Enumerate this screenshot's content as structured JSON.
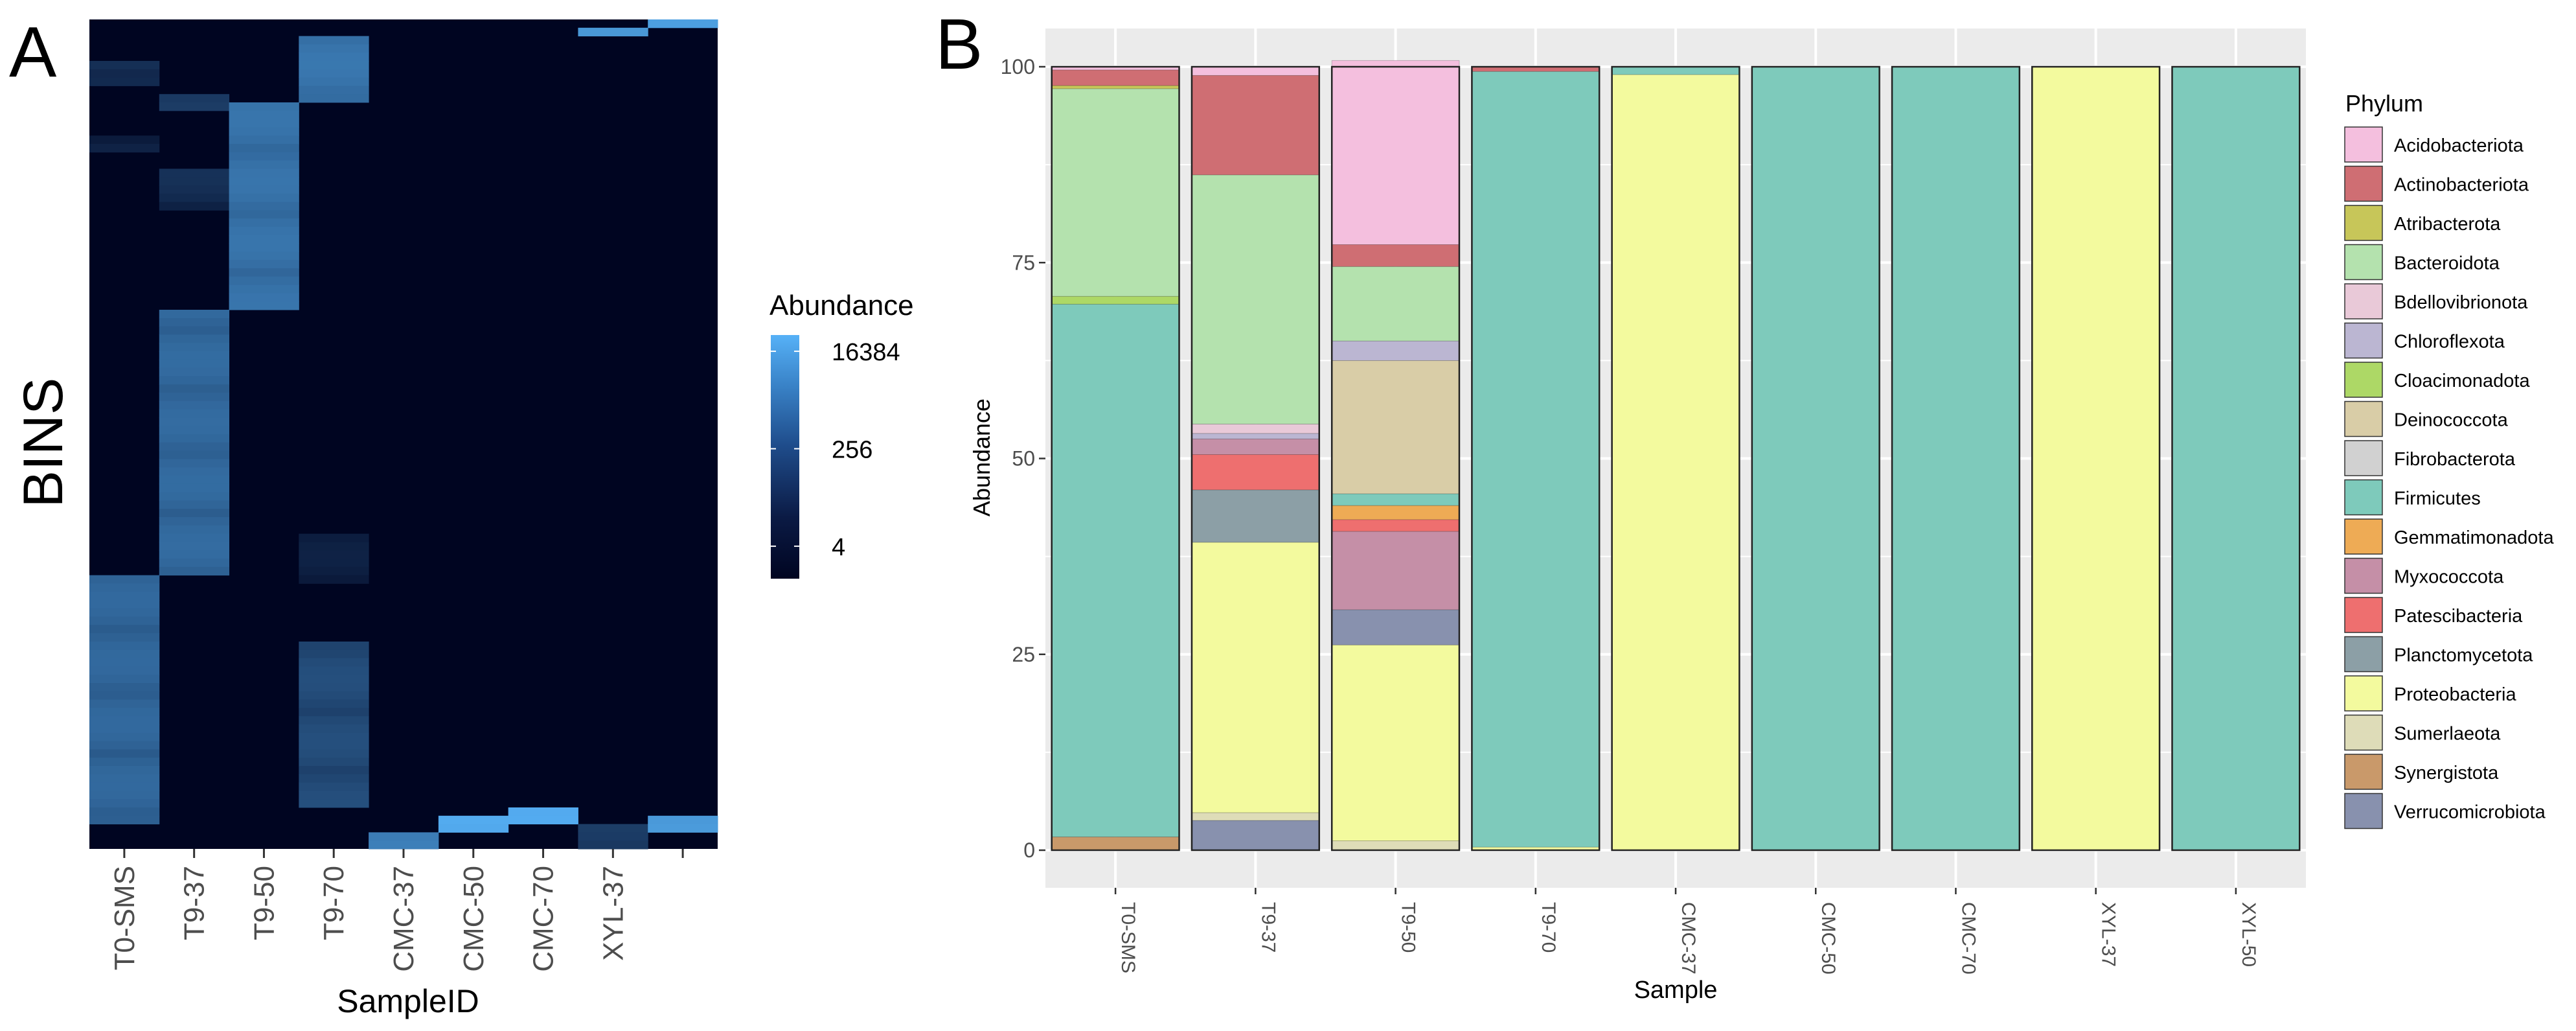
{
  "colors": {
    "heat_low": "#000521",
    "heat_high": "#56b1f7",
    "panel_bg": "#ebebeb",
    "grid": "#ffffff",
    "bar_border": "#222222"
  },
  "chart_data": [
    {
      "panel_label": "A",
      "type": "heatmap",
      "xlabel": "SampleID",
      "ylabel": "BINS",
      "columns": [
        "T0-SMS",
        "T9-37",
        "T9-50",
        "T9-70",
        "CMC-37",
        "CMC-50",
        "CMC-70",
        "XYL-37",
        ""
      ],
      "n_rows": 100,
      "scale": "log2",
      "legend": {
        "title": "Abundance",
        "ticks": [
          4,
          256,
          16384
        ],
        "tick_labels": [
          "4",
          "256",
          "16384"
        ],
        "range": [
          1,
          32768
        ]
      },
      "blocks": [
        {
          "col": 0,
          "rows": [
            5,
            8
          ],
          "value": 12
        },
        {
          "col": 0,
          "rows": [
            14,
            16
          ],
          "value": 6
        },
        {
          "col": 0,
          "rows": [
            67,
            97
          ],
          "value": 300
        },
        {
          "col": 1,
          "rows": [
            9,
            11
          ],
          "value": 20
        },
        {
          "col": 1,
          "rows": [
            18,
            23
          ],
          "value": 10
        },
        {
          "col": 1,
          "rows": [
            35,
            67
          ],
          "value": 350
        },
        {
          "col": 2,
          "rows": [
            10,
            35
          ],
          "value": 600
        },
        {
          "col": 3,
          "rows": [
            2,
            10
          ],
          "value": 700
        },
        {
          "col": 3,
          "rows": [
            62,
            68
          ],
          "value": 4
        },
        {
          "col": 3,
          "rows": [
            75,
            95
          ],
          "value": 60
        },
        {
          "col": 4,
          "rows": [
            98,
            100
          ],
          "value": 2000
        },
        {
          "col": 5,
          "rows": [
            96,
            98
          ],
          "value": 16000
        },
        {
          "col": 6,
          "rows": [
            95,
            97
          ],
          "value": 16000
        },
        {
          "col": 7,
          "rows": [
            1,
            2
          ],
          "value": 5000
        },
        {
          "col": 7,
          "rows": [
            97,
            100
          ],
          "value": 20
        },
        {
          "col": 8,
          "rows": [
            0,
            1
          ],
          "value": 8000
        },
        {
          "col": 8,
          "rows": [
            96,
            98
          ],
          "value": 6000
        }
      ]
    },
    {
      "panel_label": "B",
      "type": "bar",
      "stacked": true,
      "xlabel": "Sample",
      "ylabel": "Abundance",
      "ylim": [
        0,
        100
      ],
      "yticks": [
        0,
        25,
        50,
        75,
        100
      ],
      "legend_title": "Phylum",
      "legend_position": "right",
      "categories": [
        "T0-SMS",
        "T9-37",
        "T9-50",
        "T9-70",
        "CMC-37",
        "CMC-50",
        "CMC-70",
        "XYL-37",
        "XYL-50"
      ],
      "phyla": [
        {
          "name": "Acidobacteriota",
          "color": "#f4bfde"
        },
        {
          "name": "Actinobacteriota",
          "color": "#cf6e73"
        },
        {
          "name": "Atribacterota",
          "color": "#c7c659"
        },
        {
          "name": "Bacteroidota",
          "color": "#b4e2ae"
        },
        {
          "name": "Bdellovibrionota",
          "color": "#e9c9d8"
        },
        {
          "name": "Chloroflexota",
          "color": "#bbb6d2"
        },
        {
          "name": "Cloacimonadota",
          "color": "#add866"
        },
        {
          "name": "Deinococcota",
          "color": "#d9cda7"
        },
        {
          "name": "Fibrobacterota",
          "color": "#d1d1d1"
        },
        {
          "name": "Firmicutes",
          "color": "#7ecabb"
        },
        {
          "name": "Gemmatimonadota",
          "color": "#eeab55"
        },
        {
          "name": "Myxococcota",
          "color": "#c58fa7"
        },
        {
          "name": "Patescibacteria",
          "color": "#ee6f6f"
        },
        {
          "name": "Planctomycetota",
          "color": "#8c9fa6"
        },
        {
          "name": "Proteobacteria",
          "color": "#f3fa9e"
        },
        {
          "name": "Sumerlaeota",
          "color": "#dedcb8"
        },
        {
          "name": "Synergistota",
          "color": "#c9996a"
        },
        {
          "name": "Verrucomicrobiota",
          "color": "#8891ae"
        }
      ],
      "stacks": [
        [
          [
            "Synergistota",
            1.7
          ],
          [
            "Firmicutes",
            68.0
          ],
          [
            "Cloacimonadota",
            1.0
          ],
          [
            "Bacteroidota",
            26.5
          ],
          [
            "Atribacterota",
            0.4
          ],
          [
            "Actinobacteriota",
            2.0
          ],
          [
            "Acidobacteriota",
            0.4
          ]
        ],
        [
          [
            "Verrucomicrobiota",
            3.8
          ],
          [
            "Sumerlaeota",
            1.0
          ],
          [
            "Proteobacteria",
            34.5
          ],
          [
            "Planctomycetota",
            6.7
          ],
          [
            "Patescibacteria",
            4.5
          ],
          [
            "Myxococcota",
            2.0
          ],
          [
            "Chloroflexota",
            0.7
          ],
          [
            "Bdellovibrionota",
            1.2
          ],
          [
            "Bacteroidota",
            31.8
          ],
          [
            "Actinobacteriota",
            12.7
          ],
          [
            "Acidobacteriota",
            1.1
          ]
        ],
        [
          [
            "Sumerlaeota",
            1.2
          ],
          [
            "Proteobacteria",
            25.0
          ],
          [
            "Verrucomicrobiota",
            4.5
          ],
          [
            "Myxococcota",
            10.0
          ],
          [
            "Patescibacteria",
            1.5
          ],
          [
            "Gemmatimonadota",
            1.8
          ],
          [
            "Firmicutes",
            1.5
          ],
          [
            "Deinococcota",
            17.0
          ],
          [
            "Chloroflexota",
            2.5
          ],
          [
            "Bacteroidota",
            9.5
          ],
          [
            "Actinobacteriota",
            2.8
          ],
          [
            "Acidobacteriota",
            23.5
          ]
        ],
        [
          [
            "Proteobacteria",
            0.4
          ],
          [
            "Firmicutes",
            99.0
          ],
          [
            "Actinobacteriota",
            0.6
          ]
        ],
        [
          [
            "Proteobacteria",
            99.0
          ],
          [
            "Firmicutes",
            1.0
          ]
        ],
        [
          [
            "Firmicutes",
            100.0
          ]
        ],
        [
          [
            "Firmicutes",
            100.0
          ]
        ],
        [
          [
            "Proteobacteria",
            100.0
          ]
        ],
        [
          [
            "Firmicutes",
            100.0
          ]
        ]
      ]
    }
  ]
}
